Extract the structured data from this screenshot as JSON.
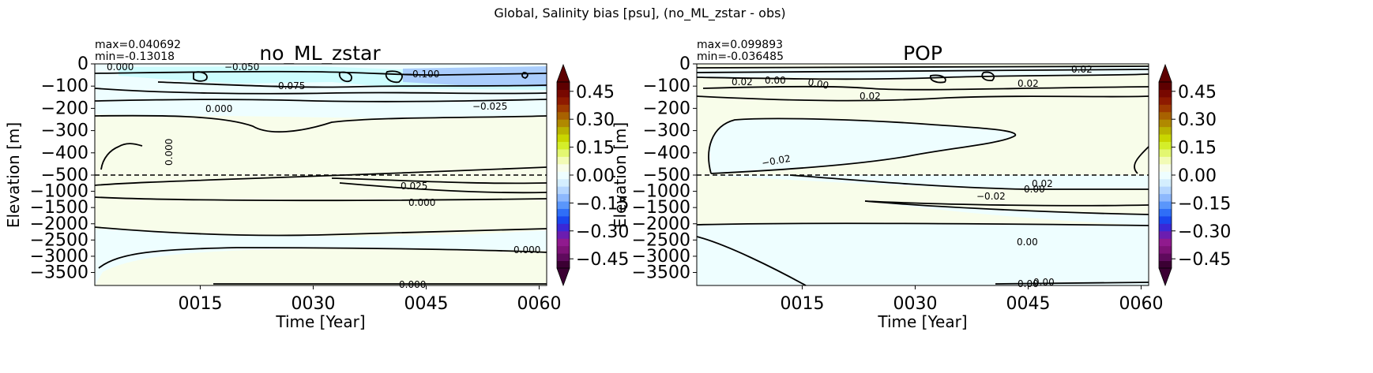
{
  "suptitle": "Global, Salinity bias [psu], (no_ML_zstar - obs)",
  "colors": {
    "fill_light_cyan": "#eefeff",
    "fill_light_yellow": "#f8fdea",
    "fill_cyan": "#cdfdfe",
    "fill_blue": "#aacdfc",
    "contour": "#000000"
  },
  "chart_data": [
    {
      "type": "contour",
      "title": "no_ML_zstar",
      "stats": {
        "max": "max=0.040692",
        "min": "min=-0.13018"
      },
      "xlabel": "Time [Year]",
      "ylabel": "Elevation [m]",
      "x_ticks": [
        "0015",
        "0030",
        "0045",
        "0060"
      ],
      "x_tick_values": [
        15,
        30,
        45,
        60
      ],
      "xlim": [
        1,
        61
      ],
      "y_ticks_upper": [
        "0",
        "−100",
        "−200",
        "−300",
        "−400",
        "−500"
      ],
      "y_ticks_upper_values": [
        0,
        -100,
        -200,
        -300,
        -400,
        -500
      ],
      "y_ticks_lower": [
        "−1000",
        "−1500",
        "−2000",
        "−2500",
        "−3000",
        "−3500"
      ],
      "y_ticks_lower_values": [
        -1000,
        -1500,
        -2000,
        -2500,
        -3000,
        -3500
      ],
      "ylim_upper": [
        -500,
        0
      ],
      "ylim_lower": [
        -3900,
        -500
      ],
      "contour_labels": [
        "0.000",
        "−0.050",
        "−0.075",
        "−0.100",
        "0.000",
        "−0.025",
        "0.000",
        "0.025",
        "0.000",
        "0.000",
        "0.000"
      ]
    },
    {
      "type": "contour",
      "title": "POP",
      "stats": {
        "max": "max=0.099893",
        "min": "min=-0.036485"
      },
      "xlabel": "Time [Year]",
      "ylabel": "Elevation [m]",
      "x_ticks": [
        "0015",
        "0030",
        "0045",
        "0060"
      ],
      "x_tick_values": [
        15,
        30,
        45,
        60
      ],
      "xlim": [
        1,
        61
      ],
      "y_ticks_upper": [
        "0",
        "−100",
        "−200",
        "−300",
        "−400",
        "−500"
      ],
      "y_ticks_upper_values": [
        0,
        -100,
        -200,
        -300,
        -400,
        -500
      ],
      "y_ticks_lower": [
        "−1000",
        "−1500",
        "−2000",
        "−2500",
        "−3000",
        "−3500"
      ],
      "y_ticks_lower_values": [
        -1000,
        -1500,
        -2000,
        -2500,
        -3000,
        -3500
      ],
      "ylim_upper": [
        -500,
        0
      ],
      "ylim_lower": [
        -3900,
        -500
      ],
      "contour_labels": [
        "0.02",
        "0.00",
        "0.00",
        "0.02",
        "0.02",
        "0.02",
        "−0.02",
        "0.02",
        "0.00",
        "−0.02",
        "0.00",
        "0.00",
        "0.00"
      ]
    }
  ],
  "colorbar": {
    "ticks": [
      "0.45",
      "0.30",
      "0.15",
      "0.00",
      "−0.15",
      "−0.30",
      "−0.45"
    ],
    "tick_values": [
      0.45,
      0.3,
      0.15,
      0.0,
      -0.15,
      -0.3,
      -0.45
    ],
    "range": [
      -0.5,
      0.5
    ],
    "colors": [
      "#3b0033",
      "#5e0a5c",
      "#7d1277",
      "#901a8e",
      "#6b1db0",
      "#3a28d6",
      "#1a46ee",
      "#2f6ef7",
      "#5a96fb",
      "#8db8fd",
      "#b4d5fe",
      "#d4eefe",
      "#eefeff",
      "#f8fdea",
      "#f2fbb6",
      "#e3f771",
      "#d4ee2a",
      "#c9d600",
      "#b9b300",
      "#b08900",
      "#a86200",
      "#9e3a00",
      "#8e1a00",
      "#780800",
      "#5e0000"
    ]
  }
}
